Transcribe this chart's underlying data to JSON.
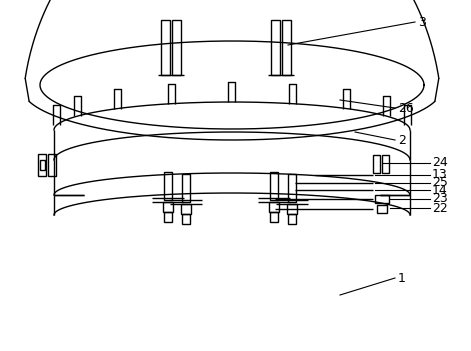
{
  "bg_color": "#ffffff",
  "line_color": "#000000",
  "lw": 1.0,
  "fs": 9,
  "leader_color": "#000000"
}
